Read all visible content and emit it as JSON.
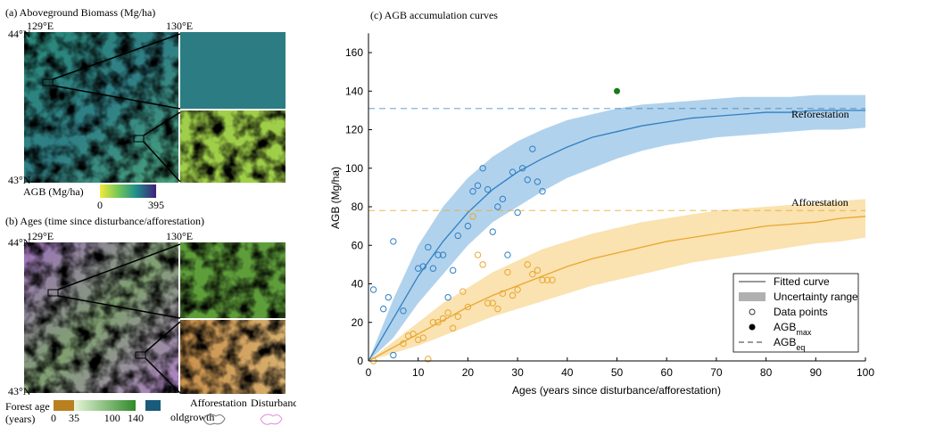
{
  "panel_a": {
    "title": "(a) Aboveground Biomass (Mg/ha)",
    "lat_top": "44°N",
    "lat_bottom": "43°N",
    "lon_left": "129°E",
    "lon_right": "130°E",
    "colorbar_label": "AGB (Mg/ha)",
    "colorbar_range": [
      0,
      395
    ]
  },
  "panel_b": {
    "title": "(b) Ages (time since disturbance/afforestation)",
    "lat_top": "44°N",
    "lat_bottom": "43°N",
    "lon_left": "129°E",
    "lon_right": "130°E",
    "colorbar_label_1": "Forest age",
    "colorbar_label_2": "(years)",
    "colorbar_range": [
      0,
      140
    ],
    "colorbar_ticks": [
      0,
      35,
      100,
      140
    ],
    "oldgrowth": "oldgrowth",
    "afforestation": "Afforestation",
    "disturbance": "Disturbance"
  },
  "chart_data": {
    "type": "line",
    "title": "(c) AGB accumulation curves",
    "x_label": "Ages (years since disturbance/afforestation)",
    "y_label": "AGB (Mg/ha)",
    "xlim": [
      0,
      100
    ],
    "ylim": [
      0,
      170
    ],
    "xticks": [
      0,
      10,
      20,
      30,
      40,
      50,
      60,
      70,
      80,
      90,
      100
    ],
    "yticks": [
      0,
      20,
      40,
      60,
      80,
      100,
      120,
      140,
      160
    ],
    "series": [
      {
        "name": "Reforestation",
        "color": "#2f7fc4",
        "band_color": "#a9cdea",
        "eq": 131,
        "x": [
          0,
          5,
          10,
          15,
          20,
          25,
          30,
          35,
          40,
          45,
          50,
          55,
          60,
          65,
          70,
          75,
          80,
          85,
          90,
          95,
          100
        ],
        "values": [
          0,
          22,
          44,
          62,
          77,
          89,
          98,
          105,
          111,
          116,
          119,
          122,
          124,
          126,
          127,
          128,
          129,
          129,
          130,
          130,
          130
        ],
        "upper": [
          0,
          32,
          60,
          80,
          95,
          106,
          114,
          120,
          125,
          128,
          131,
          133,
          134,
          135,
          136,
          137,
          137,
          137,
          138,
          138,
          138
        ],
        "lower": [
          0,
          12,
          30,
          45,
          60,
          72,
          80,
          88,
          95,
          100,
          105,
          109,
          112,
          114,
          116,
          117,
          118,
          119,
          120,
          120,
          121
        ],
        "points_x": [
          1,
          3,
          4,
          5,
          5,
          7,
          10,
          11,
          12,
          13,
          14,
          15,
          16,
          17,
          18,
          20,
          21,
          22,
          23,
          24,
          25,
          26,
          27,
          28,
          29,
          30,
          31,
          32,
          33,
          34,
          35
        ],
        "points_y": [
          37,
          27,
          33,
          62,
          3,
          26,
          48,
          49,
          59,
          48,
          55,
          55,
          33,
          47,
          65,
          70,
          88,
          91,
          100,
          89,
          67,
          80,
          84,
          55,
          98,
          77,
          100,
          94,
          110,
          93,
          88
        ]
      },
      {
        "name": "Afforestation",
        "color": "#e8a82e",
        "band_color": "#fadfa8",
        "eq": 78,
        "x": [
          0,
          5,
          10,
          15,
          20,
          25,
          30,
          35,
          40,
          45,
          50,
          55,
          60,
          65,
          70,
          75,
          80,
          85,
          90,
          95,
          100
        ],
        "values": [
          0,
          7,
          14,
          21,
          28,
          34,
          39,
          44,
          49,
          53,
          56,
          59,
          62,
          64,
          66,
          68,
          70,
          71,
          72,
          74,
          75
        ],
        "upper": [
          0,
          10,
          20,
          30,
          38,
          46,
          52,
          58,
          62,
          66,
          69,
          72,
          74,
          76,
          78,
          79,
          80,
          81,
          82,
          83,
          84
        ],
        "lower": [
          0,
          4,
          8,
          13,
          18,
          23,
          27,
          31,
          35,
          39,
          42,
          45,
          48,
          51,
          53,
          55,
          57,
          59,
          61,
          62,
          64
        ],
        "points_x": [
          1,
          7,
          8,
          9,
          10,
          11,
          12,
          13,
          14,
          15,
          16,
          17,
          18,
          19,
          20,
          21,
          22,
          23,
          24,
          25,
          26,
          27,
          28,
          29,
          30,
          32,
          33,
          34,
          35,
          36,
          37
        ],
        "points_y": [
          0,
          9,
          13,
          14,
          11,
          12,
          1,
          20,
          20,
          22,
          25,
          17,
          23,
          36,
          28,
          75,
          55,
          50,
          30,
          30,
          27,
          35,
          46,
          34,
          37,
          50,
          45,
          47,
          42,
          42,
          42
        ]
      }
    ],
    "agb_max": {
      "x": 50,
      "y": 140,
      "color": "#1a7a1a"
    },
    "legend": [
      {
        "label": "Fitted curve"
      },
      {
        "label": "Uncertainty range"
      },
      {
        "label": "Data points"
      },
      {
        "label": "AGB",
        "sub": "max"
      },
      {
        "label": "AGB",
        "sub": "eq"
      }
    ]
  }
}
